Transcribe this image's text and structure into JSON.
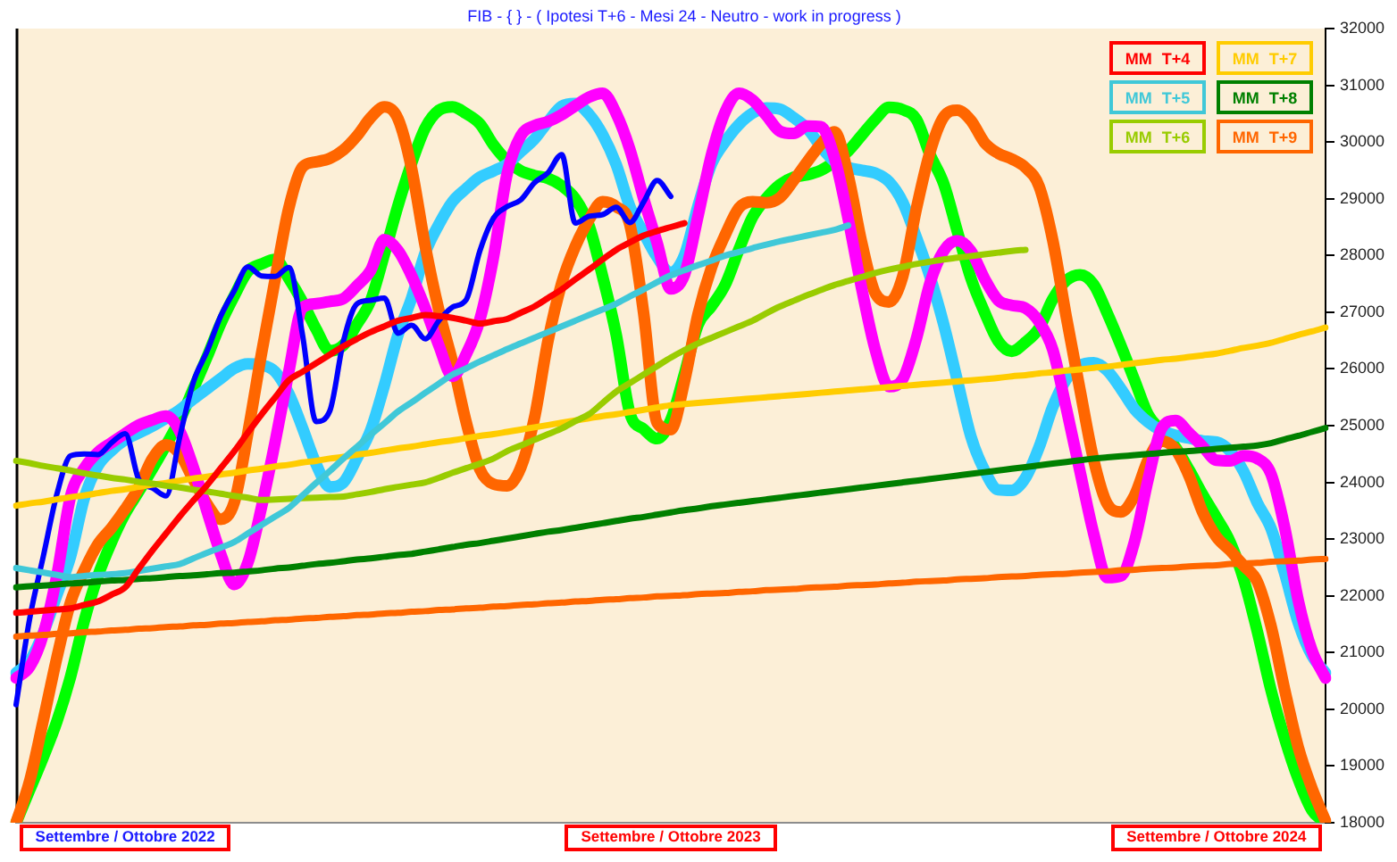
{
  "chart_data": {
    "type": "line",
    "title": "FIB - { } - ( Ipotesi T+6 - Mesi 24 - Neutro - work in progress )",
    "categories": [
      null,
      null,
      null,
      null,
      null,
      null,
      null,
      null,
      "Settembre / Ottobre 2022",
      null,
      null,
      null,
      null,
      null,
      null,
      null,
      null,
      null,
      null,
      null,
      null,
      null,
      null,
      null,
      null,
      null,
      null,
      null,
      null,
      null,
      null,
      null,
      null,
      null,
      null,
      null,
      null,
      null,
      null,
      null,
      null,
      null,
      null,
      null,
      null,
      null,
      null,
      null,
      "Settembre / Ottobre 2023",
      null,
      null,
      null,
      null,
      null,
      null,
      null,
      null,
      null,
      null,
      null,
      null,
      null,
      null,
      null,
      null,
      null,
      null,
      null,
      null,
      null,
      null,
      null,
      null,
      null,
      null,
      null,
      null,
      null,
      null,
      null,
      null,
      null,
      null,
      null,
      null,
      null,
      null,
      null,
      "Settembre / Ottobre 2024",
      null,
      null,
      null,
      null,
      null,
      null,
      null,
      null
    ],
    "ylim": [
      18000,
      32000
    ],
    "yticks": [
      18000,
      19000,
      20000,
      21000,
      22000,
      23000,
      24000,
      25000,
      26000,
      27000,
      28000,
      29000,
      30000,
      31000,
      32000
    ],
    "legend": "top right",
    "grid": false,
    "marker": "none",
    "series": [
      {
        "name": "MM T+4",
        "color": "#ff0000",
        "values": [
          21700,
          21720,
          21740,
          21760,
          21780,
          21840,
          21900,
          22020,
          22150,
          22480,
          22800,
          23100,
          23400,
          23680,
          23950,
          24250,
          24550,
          24880,
          25200,
          25500,
          25800,
          25950,
          26100,
          26250,
          26400,
          26530,
          26650,
          26750,
          26850,
          26900,
          26950,
          26930,
          26900,
          26850,
          26800,
          26840,
          26880,
          26990,
          27100,
          27250,
          27400,
          27580,
          27750,
          27930,
          28100,
          28230,
          28350,
          28430,
          28500,
          28570,
          null,
          null,
          null,
          null,
          null,
          null,
          null,
          null,
          null,
          null,
          null,
          null,
          null,
          null,
          null,
          null,
          null,
          null,
          null,
          null,
          null,
          null,
          null,
          null,
          null,
          null,
          null,
          null,
          null,
          null,
          null,
          null,
          null,
          null,
          null,
          null,
          null,
          null,
          null,
          null,
          null,
          null,
          null,
          null,
          null,
          null,
          null
        ]
      },
      {
        "name": "MM T+5",
        "color": "#40c8d8",
        "values": [
          22490,
          22450,
          22410,
          22370,
          22330,
          22350,
          22370,
          22380,
          22400,
          22440,
          22480,
          22520,
          22560,
          22660,
          22760,
          22850,
          22950,
          23100,
          23250,
          23400,
          23550,
          23770,
          23990,
          24200,
          24420,
          24630,
          24840,
          25040,
          25250,
          25410,
          25580,
          25740,
          25900,
          26010,
          26130,
          26240,
          26350,
          26450,
          26550,
          26650,
          26750,
          26850,
          26950,
          27050,
          27150,
          27280,
          27400,
          27530,
          27650,
          27740,
          27830,
          27910,
          28000,
          28060,
          28130,
          28190,
          28250,
          28300,
          28350,
          28400,
          28450,
          28530,
          null,
          null,
          null,
          null,
          null,
          null,
          null,
          null,
          null,
          null,
          null,
          null,
          null,
          null,
          null,
          null,
          null,
          null,
          null,
          null,
          null,
          null,
          null,
          null,
          null,
          null,
          null,
          null,
          null,
          null,
          null,
          null,
          null,
          null,
          null
        ]
      },
      {
        "name": "MM T+6",
        "color": "#99cc00",
        "values": [
          24380,
          24340,
          24290,
          24250,
          24210,
          24160,
          24120,
          24080,
          24050,
          24010,
          23980,
          23940,
          23910,
          23870,
          23840,
          23800,
          23760,
          23730,
          23690,
          23700,
          23710,
          23720,
          23730,
          23740,
          23750,
          23790,
          23830,
          23880,
          23920,
          23960,
          24000,
          24080,
          24170,
          24250,
          24330,
          24420,
          24550,
          24650,
          24750,
          24850,
          24950,
          25080,
          25200,
          25400,
          25600,
          25750,
          25900,
          26050,
          26200,
          26330,
          26450,
          26550,
          26650,
          26750,
          26850,
          26980,
          27100,
          27200,
          27300,
          27390,
          27480,
          27550,
          27620,
          27690,
          27750,
          27800,
          27850,
          27890,
          27930,
          27960,
          27990,
          28020,
          28050,
          28080,
          28100,
          null,
          null,
          null,
          null,
          null,
          null,
          null,
          null,
          null,
          null,
          null,
          null,
          null,
          null,
          null,
          null,
          null,
          null,
          null,
          null,
          null,
          null
        ]
      },
      {
        "name": "MM T+7",
        "color": "#ffcc00",
        "values": [
          23590,
          23630,
          23660,
          23700,
          23740,
          23770,
          23810,
          23850,
          23880,
          23920,
          23960,
          23990,
          24030,
          24070,
          24100,
          24140,
          24170,
          24210,
          24240,
          24280,
          24310,
          24350,
          24380,
          24420,
          24450,
          24490,
          24520,
          24560,
          24600,
          24630,
          24670,
          24710,
          24740,
          24780,
          24820,
          24850,
          24890,
          24930,
          24970,
          25010,
          25050,
          25090,
          25130,
          25170,
          25200,
          25240,
          25280,
          25320,
          25360,
          25380,
          25400,
          25420,
          25440,
          25460,
          25480,
          25500,
          25520,
          25540,
          25560,
          25580,
          25600,
          25620,
          25640,
          25660,
          25680,
          25700,
          25720,
          25740,
          25760,
          25780,
          25800,
          25820,
          25840,
          25870,
          25890,
          25920,
          25940,
          25970,
          25990,
          26020,
          26040,
          26070,
          26100,
          26130,
          26160,
          26180,
          26210,
          26240,
          26270,
          26320,
          26370,
          26410,
          26460,
          26530,
          26600,
          26660,
          26730
        ]
      },
      {
        "name": "MM T+8",
        "color": "#008000",
        "values": [
          22150,
          22170,
          22180,
          22200,
          22220,
          22230,
          22250,
          22270,
          22280,
          22300,
          22310,
          22330,
          22350,
          22360,
          22380,
          22400,
          22410,
          22430,
          22450,
          22480,
          22500,
          22530,
          22560,
          22580,
          22610,
          22640,
          22660,
          22690,
          22720,
          22740,
          22780,
          22820,
          22860,
          22900,
          22930,
          22970,
          23010,
          23050,
          23090,
          23130,
          23160,
          23200,
          23240,
          23280,
          23320,
          23360,
          23390,
          23430,
          23470,
          23510,
          23540,
          23580,
          23610,
          23640,
          23670,
          23700,
          23730,
          23760,
          23790,
          23820,
          23850,
          23880,
          23910,
          23940,
          23970,
          24000,
          24030,
          24060,
          24090,
          24120,
          24150,
          24180,
          24210,
          24240,
          24270,
          24300,
          24330,
          24360,
          24390,
          24420,
          24440,
          24460,
          24480,
          24500,
          24520,
          24540,
          24550,
          24570,
          24590,
          24610,
          24630,
          24650,
          24690,
          24760,
          24820,
          24890,
          24960
        ]
      },
      {
        "name": "MM T+9",
        "color": "#ff6600",
        "values": [
          21280,
          21300,
          21310,
          21330,
          21340,
          21360,
          21370,
          21390,
          21400,
          21420,
          21430,
          21450,
          21460,
          21480,
          21490,
          21510,
          21520,
          21540,
          21550,
          21570,
          21580,
          21600,
          21610,
          21630,
          21640,
          21660,
          21670,
          21690,
          21700,
          21720,
          21730,
          21750,
          21760,
          21780,
          21790,
          21810,
          21820,
          21840,
          21850,
          21870,
          21880,
          21900,
          21910,
          21930,
          21940,
          21960,
          21970,
          21990,
          22000,
          22010,
          22030,
          22040,
          22050,
          22070,
          22080,
          22100,
          22110,
          22120,
          22140,
          22150,
          22160,
          22180,
          22190,
          22200,
          22220,
          22230,
          22250,
          22260,
          22270,
          22290,
          22300,
          22310,
          22330,
          22340,
          22350,
          22370,
          22380,
          22390,
          22410,
          22420,
          22430,
          22450,
          22460,
          22480,
          22490,
          22500,
          22520,
          22530,
          22540,
          22560,
          22570,
          22580,
          22600,
          22610,
          22620,
          22640,
          22650
        ]
      },
      {
        "color": "#0000ff",
        "values": [
          20080,
          21600,
          22700,
          23800,
          24470,
          24500,
          24490,
          24700,
          24860,
          24050,
          23900,
          23760,
          24800,
          25770,
          26310,
          26930,
          27380,
          27800,
          27640,
          27630,
          27790,
          26600,
          25070,
          25260,
          26490,
          27150,
          27210,
          27250,
          26630,
          26770,
          26530,
          26850,
          27090,
          27220,
          28080,
          28660,
          28860,
          28980,
          29280,
          29460,
          29780,
          28570,
          28690,
          28720,
          28850,
          28580,
          28940,
          29320,
          29040,
          null,
          null,
          null,
          null,
          null,
          null,
          null,
          null,
          null,
          null,
          null,
          null,
          null,
          null,
          null,
          null,
          null,
          null,
          null,
          null,
          null,
          null,
          null,
          null,
          null,
          null,
          null,
          null,
          null,
          null,
          null,
          null,
          null,
          null,
          null,
          null,
          null,
          null,
          null,
          null,
          null,
          null,
          null,
          null,
          null,
          null,
          null,
          null
        ]
      },
      {
        "color": "#ff00ff",
        "values": [
          20550,
          20750,
          21330,
          22370,
          23760,
          24250,
          24530,
          24700,
          24860,
          25010,
          25100,
          25170,
          24900,
          24260,
          23490,
          22740,
          22200,
          22590,
          23570,
          24720,
          25960,
          27080,
          27150,
          27190,
          27240,
          27470,
          27740,
          28280,
          28090,
          27640,
          27070,
          26410,
          25870,
          26260,
          26870,
          27970,
          29440,
          30110,
          30290,
          30360,
          30480,
          30640,
          30790,
          30860,
          30500,
          29870,
          29010,
          28220,
          27410,
          27660,
          28700,
          29790,
          30540,
          30860,
          30740,
          30470,
          30190,
          30150,
          30280,
          30270,
          29720,
          28650,
          27410,
          26330,
          25690,
          25820,
          26530,
          27510,
          28080,
          28260,
          28080,
          27590,
          27210,
          27120,
          27070,
          26830,
          26340,
          25300,
          24190,
          23100,
          22320,
          22350,
          22960,
          24060,
          24960,
          25090,
          24870,
          24630,
          24390,
          24380,
          24470,
          24420,
          24150,
          23210,
          21920,
          21040,
          20550
        ]
      },
      {
        "color": "#ff6600",
        "values": [
          18000,
          18740,
          19810,
          20920,
          21890,
          22450,
          22910,
          23200,
          23530,
          23910,
          24420,
          24660,
          24500,
          24050,
          23620,
          23350,
          23650,
          24880,
          26280,
          27590,
          28840,
          29560,
          29650,
          29710,
          29860,
          30110,
          30430,
          30620,
          30410,
          29530,
          28160,
          27030,
          26120,
          25060,
          24230,
          23970,
          23940,
          24260,
          25130,
          26500,
          27510,
          28160,
          28630,
          28950,
          28860,
          28540,
          27000,
          25050,
          24930,
          25780,
          26970,
          27800,
          28370,
          28840,
          28950,
          28930,
          29020,
          29320,
          29650,
          29960,
          30180,
          29410,
          28220,
          27330,
          27180,
          27630,
          28820,
          29820,
          30440,
          30560,
          30380,
          29990,
          29800,
          29700,
          29550,
          29220,
          28270,
          26910,
          25630,
          24400,
          23620,
          23480,
          23770,
          24400,
          24730,
          24580,
          24110,
          23470,
          23040,
          22800,
          22530,
          22250,
          21470,
          20350,
          19330,
          18610,
          18030
        ]
      },
      {
        "color": "#33ccff",
        "values": [
          20640,
          20850,
          21350,
          22020,
          22700,
          23720,
          24290,
          24560,
          24750,
          24870,
          24990,
          25130,
          25280,
          25470,
          25650,
          25830,
          26010,
          26090,
          26070,
          25950,
          25560,
          24960,
          24320,
          23920,
          24000,
          24430,
          24920,
          25710,
          26600,
          27250,
          28050,
          28550,
          28950,
          29180,
          29380,
          29490,
          29610,
          29830,
          30050,
          30360,
          30630,
          30680,
          30490,
          30130,
          29600,
          28860,
          28400,
          27970,
          27700,
          28000,
          28880,
          29620,
          30010,
          30310,
          30510,
          30600,
          30580,
          30430,
          30240,
          29920,
          29660,
          29550,
          29500,
          29450,
          29300,
          28940,
          28320,
          27630,
          26790,
          25800,
          24810,
          24210,
          23870,
          23860,
          24080,
          24620,
          25330,
          25820,
          26060,
          26110,
          25970,
          25650,
          25290,
          25060,
          24910,
          24830,
          24780,
          24730,
          24710,
          24550,
          24190,
          23640,
          23190,
          22400,
          21530,
          20950,
          20640
        ]
      },
      {
        "color": "#00ff00",
        "values": [
          18000,
          18580,
          19160,
          19790,
          20580,
          21560,
          22350,
          22950,
          23450,
          23840,
          24240,
          24660,
          25100,
          25650,
          26210,
          26800,
          27290,
          27720,
          27850,
          27930,
          27590,
          27180,
          26700,
          26320,
          26420,
          26790,
          27210,
          28020,
          28880,
          29630,
          30250,
          30560,
          30620,
          30500,
          30320,
          29950,
          29670,
          29490,
          29410,
          29360,
          29230,
          29000,
          28530,
          27630,
          26600,
          25220,
          24940,
          24770,
          25100,
          25910,
          26780,
          27110,
          27490,
          28110,
          28680,
          29010,
          29250,
          29380,
          29420,
          29500,
          29650,
          29840,
          30120,
          30400,
          30610,
          30570,
          30400,
          29780,
          29270,
          28430,
          27600,
          27000,
          26490,
          26310,
          26470,
          26720,
          27230,
          27560,
          27660,
          27490,
          26980,
          26410,
          25800,
          25190,
          24900,
          24620,
          24220,
          23780,
          23380,
          22950,
          22290,
          21370,
          20340,
          19490,
          18770,
          18220,
          18000
        ]
      }
    ]
  }
}
